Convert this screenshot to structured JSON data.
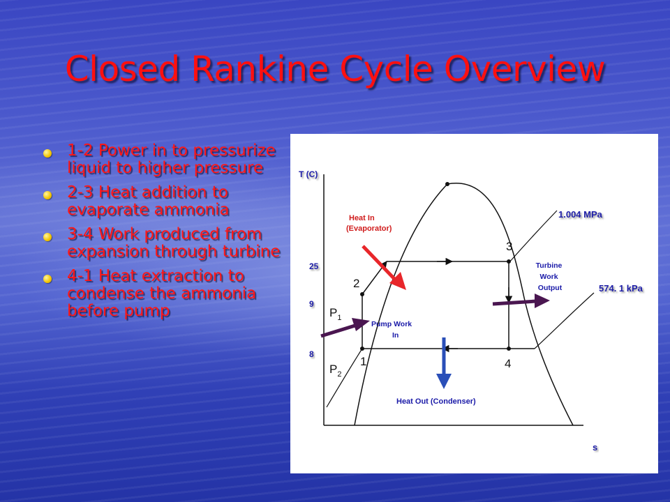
{
  "slide": {
    "title": "Closed Rankine Cycle Overview",
    "bullets": [
      "1-2  Power in to pressurize liquid to higher pressure",
      "2-3  Heat addition to evaporate ammonia",
      "3-4  Work produced from expansion through turbine",
      "4-1  Heat extraction to condense the ammonia before pump"
    ]
  },
  "diagram": {
    "y_axis_label": "T (C)",
    "x_axis_label": "s",
    "temp_ticks": [
      "25",
      "9",
      "8"
    ],
    "pressure_lines": [
      "1.004 MPa",
      "574. 1 kPa"
    ],
    "state_points": [
      "1",
      "2",
      "3",
      "4"
    ],
    "pressure_labels": {
      "p1": "P",
      "p1_sub": "1",
      "p2": "P",
      "p2_sub": "2"
    },
    "annotations": {
      "heat_in_line1": "Heat In",
      "heat_in_line2": "(Evaporator)",
      "pump_line1": "Pump Work",
      "pump_line2": "In",
      "turbine_line1": "Turbine",
      "turbine_line2": "Work",
      "turbine_line3": "Output",
      "heat_out": "Heat Out (Condenser)"
    },
    "colors": {
      "heat_in_arrow": "#e8262a",
      "heat_out_arrow": "#2a4fb8",
      "work_arrow": "#4a1650",
      "label_blue": "#1a1aa8"
    }
  }
}
